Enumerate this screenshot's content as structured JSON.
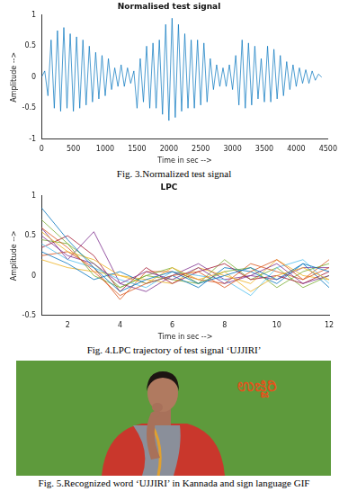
{
  "chart_data": [
    {
      "type": "line",
      "title": "Normalised test signal",
      "x_label": "Time in sec -->",
      "y_label": "Amplitude -->",
      "caption": "Fig. 3.Normalized test signal",
      "color": "#0072bd",
      "grid": false,
      "xlim": [
        0,
        4500
      ],
      "xticks": [
        0,
        500,
        1000,
        1500,
        2000,
        2500,
        3000,
        3500,
        4000,
        4500
      ],
      "ylim": [
        -1,
        1
      ],
      "yticks": [
        -1,
        -0.5,
        0,
        0.5,
        1
      ],
      "x": [
        0,
        50,
        100,
        150,
        200,
        250,
        300,
        350,
        400,
        450,
        500,
        550,
        600,
        650,
        700,
        750,
        800,
        850,
        900,
        950,
        1000,
        1050,
        1100,
        1150,
        1200,
        1250,
        1300,
        1350,
        1400,
        1450,
        1500,
        1550,
        1600,
        1650,
        1700,
        1750,
        1800,
        1850,
        1900,
        1950,
        2000,
        2050,
        2100,
        2150,
        2200,
        2250,
        2300,
        2350,
        2400,
        2450,
        2500,
        2550,
        2600,
        2650,
        2700,
        2750,
        2800,
        2850,
        2900,
        2950,
        3000,
        3050,
        3100,
        3150,
        3200,
        3250,
        3300,
        3350,
        3400,
        3450,
        3500,
        3550,
        3600,
        3650,
        3700,
        3750,
        3800,
        3850,
        3900,
        3950,
        4000,
        4050,
        4100,
        4150,
        4200,
        4250,
        4300,
        4350,
        4400
      ],
      "values": [
        0,
        0.1,
        -0.3,
        0.6,
        -0.5,
        0.75,
        -0.55,
        0.8,
        -0.5,
        0.7,
        -0.55,
        0.65,
        -0.5,
        0.6,
        -0.45,
        0.5,
        -0.4,
        0.4,
        -0.35,
        0.35,
        -0.3,
        0.3,
        -0.2,
        0.15,
        -0.15,
        0.2,
        -0.15,
        0.15,
        -0.1,
        0.1,
        -0.5,
        0.3,
        -0.4,
        0.5,
        -0.5,
        0.55,
        -0.5,
        0.6,
        -0.6,
        0.85,
        -0.7,
        0.95,
        -0.65,
        0.85,
        -0.55,
        0.7,
        -0.5,
        0.6,
        -0.5,
        0.6,
        -0.45,
        0.55,
        -0.4,
        0.3,
        -0.2,
        0.2,
        -0.15,
        0.15,
        -0.15,
        0.2,
        -0.2,
        0.35,
        -0.45,
        0.6,
        -0.5,
        0.55,
        -0.45,
        0.5,
        -0.35,
        0.3,
        -0.4,
        0.5,
        -0.4,
        0.45,
        -0.35,
        0.35,
        -0.3,
        0.25,
        -0.2,
        0.2,
        -0.15,
        0.15,
        -0.1,
        0.12,
        -0.1,
        0.1,
        -0.05,
        0.05,
        0
      ]
    },
    {
      "type": "line",
      "title": "LPC",
      "x_label": "Time in sec -->",
      "y_label": "Amplitude -->",
      "caption": "Fig. 4.LPC trajectory of test signal ‘UJJIRI’",
      "grid": false,
      "xlim": [
        1,
        12
      ],
      "xticks": [
        2,
        4,
        6,
        8,
        10,
        12
      ],
      "ylim": [
        -0.5,
        1
      ],
      "yticks": [
        -0.5,
        0,
        0.5,
        1
      ],
      "x": [
        1,
        2,
        3,
        4,
        5,
        6,
        7,
        8,
        9,
        10,
        11,
        12
      ],
      "series": [
        {
          "color": "#0072bd",
          "values": [
            0.85,
            0.45,
            0.1,
            -0.2,
            -0.05,
            0.05,
            -0.1,
            0,
            0.1,
            -0.05,
            0.15,
            0.05
          ]
        },
        {
          "color": "#d95319",
          "values": [
            0.6,
            0.35,
            0.05,
            -0.25,
            -0.1,
            0,
            0.05,
            -0.15,
            0.05,
            0.2,
            -0.05,
            0.1
          ]
        },
        {
          "color": "#edb120",
          "values": [
            0.55,
            0.3,
            0.2,
            0,
            -0.1,
            0.1,
            -0.05,
            0.05,
            -0.2,
            0,
            0.1,
            -0.05
          ]
        },
        {
          "color": "#7e2f8e",
          "values": [
            0.5,
            0.25,
            0.15,
            -0.1,
            0.05,
            -0.05,
            0.1,
            -0.1,
            0,
            0.15,
            -0.1,
            0
          ]
        },
        {
          "color": "#77ac30",
          "values": [
            0.45,
            0.4,
            0,
            -0.15,
            0,
            0.1,
            -0.1,
            0.05,
            0.1,
            -0.15,
            0.05,
            0.15
          ]
        },
        {
          "color": "#4dbeee",
          "values": [
            0.4,
            0.2,
            0.1,
            -0.05,
            -0.15,
            0.05,
            0,
            -0.05,
            -0.25,
            0.1,
            0.2,
            -0.1
          ]
        },
        {
          "color": "#a2142f",
          "values": [
            0.35,
            0.5,
            0.25,
            -0.2,
            0.1,
            -0.1,
            0.05,
            0.15,
            -0.05,
            0,
            -0.1,
            0.05
          ]
        },
        {
          "color": "#0072bd",
          "values": [
            0.3,
            0.15,
            -0.05,
            0.05,
            -0.1,
            0,
            -0.15,
            0.1,
            0.05,
            -0.1,
            0.15,
            -0.15
          ]
        },
        {
          "color": "#d95319",
          "values": [
            0.25,
            0.3,
            0.1,
            -0.3,
            0.05,
            0.05,
            -0.05,
            -0.1,
            0.15,
            0.05,
            -0.05,
            0.2
          ]
        },
        {
          "color": "#edb120",
          "values": [
            0.2,
            0.1,
            0.05,
            0,
            -0.05,
            -0.1,
            0.1,
            0,
            -0.1,
            0.2,
            0,
            -0.05
          ]
        },
        {
          "color": "#7e2f8e",
          "values": [
            0.6,
            0.2,
            0.55,
            -0.1,
            -0.2,
            0,
            0.15,
            -0.05,
            0,
            -0.05,
            0.1,
            0.1
          ]
        },
        {
          "color": "#77ac30",
          "values": [
            0.7,
            0.4,
            0.15,
            -0.15,
            0,
            -0.05,
            -0.1,
            0.2,
            -0.05,
            0.1,
            -0.15,
            0
          ]
        }
      ]
    }
  ],
  "photo": {
    "word": "ಉಜ್ಜಿರಿ",
    "caption": "Fig. 5.Recognized word ‘UJJIRI’ in Kannada and sign language GIF"
  }
}
